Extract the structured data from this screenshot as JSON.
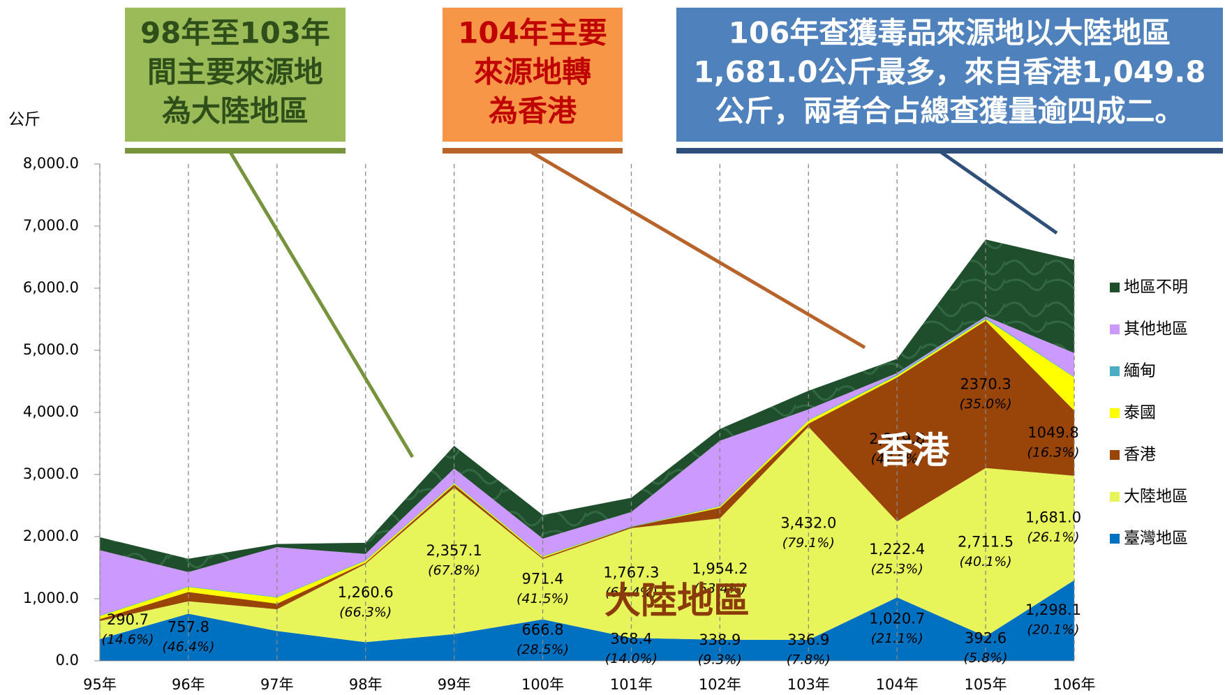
{
  "chart_data": {
    "type": "stacked_area",
    "y_unit": "公斤",
    "categories": [
      "95年",
      "96年",
      "97年",
      "98年",
      "99年",
      "100年",
      "101年",
      "102年",
      "103年",
      "104年",
      "105年",
      "106年"
    ],
    "ylim": [
      0,
      8000
    ],
    "yticks": [
      {
        "value": 0,
        "label": "0.0"
      },
      {
        "value": 1000,
        "label": "1,000.0"
      },
      {
        "value": 2000,
        "label": "2,000.0"
      },
      {
        "value": 3000,
        "label": "3,000.0"
      },
      {
        "value": 4000,
        "label": "4,000.0"
      },
      {
        "value": 5000,
        "label": "5,000.0"
      },
      {
        "value": 6000,
        "label": "6,000.0"
      },
      {
        "value": 7000,
        "label": "7,000.0"
      },
      {
        "value": 8000,
        "label": "8,000.0"
      }
    ],
    "grid_x": true,
    "series": [
      {
        "name": "臺灣地區",
        "color": "#0070c0",
        "values": [
          350,
          757.8,
          480,
          300,
          430,
          666.8,
          368.4,
          338.9,
          336.9,
          1020.7,
          392.6,
          1298.1
        ],
        "value_labels": [
          null,
          "757.8",
          null,
          null,
          null,
          "666.8",
          "368.4",
          "338.9",
          "336.9",
          "1,020.7",
          "392.6",
          "1,298.1"
        ],
        "share_labels": [
          null,
          "(46.4%)",
          null,
          null,
          null,
          "(28.5%)",
          "(14.0%)",
          "(9.3%)",
          "(7.8%)",
          "(21.1%)",
          "(5.8%)",
          "(20.1%)"
        ]
      },
      {
        "name": "大陸地區",
        "color": "#e8f55a",
        "values": [
          290.7,
          200,
          350,
          1260.6,
          2357.1,
          971.4,
          1767.3,
          1954.2,
          3432.0,
          1222.4,
          2711.5,
          1681.0
        ],
        "value_labels": [
          "290.7",
          null,
          null,
          "1,260.6",
          "2,357.1",
          "971.4",
          "1,767.3",
          "1,954.2",
          "3,432.0",
          "1,222.4",
          "2,711.5",
          "1,681.0"
        ],
        "share_labels": [
          "(14.6%)",
          null,
          null,
          "(66.3%)",
          "(67.8%)",
          "(41.5%)",
          "(67.4%)",
          "(53.4%)",
          "(79.1%)",
          "(25.3%)",
          "(40.1%)",
          "(26.1%)"
        ]
      },
      {
        "name": "香港",
        "color": "#99450a",
        "values": [
          30,
          150,
          90,
          20,
          50,
          20,
          20,
          170,
          50,
          2319.8,
          2370.3,
          1049.8
        ],
        "value_labels": [
          null,
          null,
          null,
          null,
          null,
          null,
          null,
          null,
          null,
          "2,319.8",
          "2370.3",
          "1049.8"
        ],
        "share_labels": [
          null,
          null,
          null,
          null,
          null,
          null,
          null,
          null,
          null,
          "(47.9%)",
          "(35.0%)",
          "(16.3%)"
        ]
      },
      {
        "name": "泰國",
        "color": "#ffff00",
        "values": [
          50,
          80,
          100,
          30,
          20,
          20,
          0,
          20,
          50,
          30,
          30,
          537
        ]
      },
      {
        "name": "緬甸",
        "color": "#4bacc6",
        "values": [
          10,
          10,
          10,
          10,
          10,
          10,
          10,
          10,
          10,
          20,
          20,
          10
        ]
      },
      {
        "name": "其他地區",
        "color": "#cc99ff",
        "values": [
          1050,
          230,
          800,
          100,
          230,
          280,
          230,
          1050,
          170,
          20,
          20,
          380
        ]
      },
      {
        "name": "地區不明",
        "color": "#1f4e2c",
        "values": [
          210,
          215,
          50,
          180,
          365,
          380,
          230,
          190,
          300,
          230,
          1240,
          1500
        ]
      }
    ],
    "annotations": [
      {
        "lines": [
          "98年至103年",
          "間主要來源地",
          "為大陸地區"
        ],
        "color": "#9bbb59",
        "text_color": "#2f4f1a"
      },
      {
        "lines": [
          "104年主要",
          "來源地轉",
          "為香港"
        ],
        "color": "#f79646",
        "text_color": "#c00000"
      },
      {
        "lines": [
          "106年查獲毒品來源地以大陸地區",
          "1,681.0公斤最多，來自香港1,049.8",
          "公斤，兩者合占總查獲量逾四成二。"
        ],
        "color": "#4f81bd",
        "text_color": "#ffffff"
      }
    ],
    "area_labels": [
      "大陸地區",
      "香港"
    ]
  }
}
